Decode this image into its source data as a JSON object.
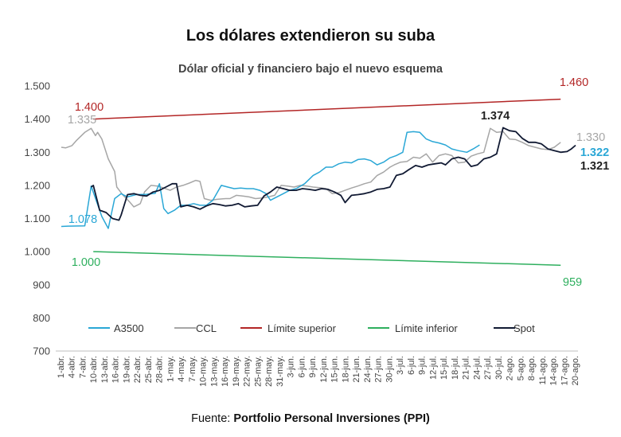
{
  "chart_data": {
    "type": "line",
    "title": "Los dólares extendieron su suba",
    "subtitle": "Dólar oficial y financiero bajo el nuevo esquema",
    "source_prefix": "Fuente: ",
    "source_name": "Portfolio Personal Inversiones (PPI)",
    "ylim": [
      700,
      1500
    ],
    "yticks": [
      "700",
      "800",
      "900",
      "1.000",
      "1.100",
      "1.200",
      "1.300",
      "1.400",
      "1.500"
    ],
    "ytick_values": [
      700,
      800,
      900,
      1000,
      1100,
      1200,
      1300,
      1400,
      1500
    ],
    "xlabels": [
      "1-abr.",
      "4-abr.",
      "7-abr.",
      "10-abr.",
      "13-abr.",
      "16-abr.",
      "19-abr.",
      "22-abr.",
      "25-abr.",
      "28-abr.",
      "1-may.",
      "4-may.",
      "7-may.",
      "10-may.",
      "13-may.",
      "16-may.",
      "19-may.",
      "22-may.",
      "25-may.",
      "28-may.",
      "31-may.",
      "3-jun.",
      "6-jun.",
      "9-jun.",
      "12-jun.",
      "15-jun.",
      "18-jun.",
      "21-jun.",
      "24-jun.",
      "27-jun.",
      "30-jun.",
      "3-jul.",
      "6-jul.",
      "9-jul.",
      "12-jul.",
      "15-jul.",
      "18-jul.",
      "21-jul.",
      "24-jul.",
      "27-jul.",
      "30-jul.",
      "2-ago.",
      "5-ago.",
      "8-ago.",
      "11-ago.",
      "14-ago.",
      "17-ago.",
      "20-ago."
    ],
    "series": [
      {
        "name": "A3500",
        "color": "#2aa7d6",
        "points": [
          [
            0,
            1076
          ],
          [
            3,
            1077
          ],
          [
            11,
            1078
          ],
          [
            14,
            1198
          ],
          [
            19,
            1106
          ],
          [
            22,
            1070
          ],
          [
            25,
            1160
          ],
          [
            28,
            1175
          ],
          [
            31,
            1165
          ],
          [
            35,
            1172
          ],
          [
            40,
            1173
          ],
          [
            44,
            1176
          ],
          [
            46,
            1205
          ],
          [
            48,
            1130
          ],
          [
            50,
            1115
          ],
          [
            53,
            1125
          ],
          [
            56,
            1140
          ],
          [
            59,
            1140
          ],
          [
            62,
            1145
          ],
          [
            65,
            1140
          ],
          [
            68,
            1140
          ],
          [
            71,
            1155
          ],
          [
            75,
            1200
          ],
          [
            78,
            1195
          ],
          [
            81,
            1190
          ],
          [
            84,
            1192
          ],
          [
            87,
            1190
          ],
          [
            90,
            1190
          ],
          [
            93,
            1185
          ],
          [
            96,
            1175
          ],
          [
            98,
            1155
          ],
          [
            101,
            1165
          ],
          [
            104,
            1175
          ],
          [
            107,
            1185
          ],
          [
            110,
            1190
          ],
          [
            114,
            1205
          ],
          [
            118,
            1230
          ],
          [
            121,
            1240
          ],
          [
            124,
            1255
          ],
          [
            127,
            1255
          ],
          [
            130,
            1265
          ],
          [
            133,
            1270
          ],
          [
            136,
            1268
          ],
          [
            139,
            1278
          ],
          [
            142,
            1280
          ],
          [
            145,
            1275
          ],
          [
            148,
            1262
          ],
          [
            151,
            1270
          ],
          [
            154,
            1283
          ],
          [
            157,
            1290
          ],
          [
            160,
            1300
          ],
          [
            162,
            1360
          ],
          [
            165,
            1362
          ],
          [
            168,
            1360
          ],
          [
            171,
            1340
          ],
          [
            174,
            1332
          ],
          [
            177,
            1328
          ],
          [
            180,
            1322
          ],
          [
            183,
            1310
          ],
          [
            186,
            1305
          ],
          [
            190,
            1300
          ],
          [
            193,
            1310
          ],
          [
            196,
            1322
          ]
        ]
      },
      {
        "name": "CCL",
        "color": "#a6a6a6",
        "points": [
          [
            0,
            1315
          ],
          [
            2,
            1313
          ],
          [
            5,
            1320
          ],
          [
            7,
            1335
          ],
          [
            11,
            1360
          ],
          [
            14,
            1372
          ],
          [
            16,
            1350
          ],
          [
            17,
            1360
          ],
          [
            19,
            1340
          ],
          [
            22,
            1280
          ],
          [
            25,
            1242
          ],
          [
            26,
            1195
          ],
          [
            29,
            1170
          ],
          [
            32,
            1150
          ],
          [
            34,
            1135
          ],
          [
            37,
            1145
          ],
          [
            39,
            1180
          ],
          [
            42,
            1200
          ],
          [
            45,
            1198
          ],
          [
            48,
            1192
          ],
          [
            51,
            1185
          ],
          [
            54,
            1195
          ],
          [
            57,
            1200
          ],
          [
            60,
            1207
          ],
          [
            63,
            1215
          ],
          [
            65,
            1212
          ],
          [
            67,
            1160
          ],
          [
            70,
            1155
          ],
          [
            73,
            1158
          ],
          [
            77,
            1160
          ],
          [
            79,
            1160
          ],
          [
            82,
            1170
          ],
          [
            85,
            1168
          ],
          [
            88,
            1165
          ],
          [
            91,
            1160
          ],
          [
            94,
            1162
          ],
          [
            97,
            1165
          ],
          [
            100,
            1170
          ],
          [
            103,
            1200
          ],
          [
            106,
            1198
          ],
          [
            109,
            1195
          ],
          [
            112,
            1200
          ],
          [
            115,
            1198
          ],
          [
            118,
            1195
          ],
          [
            121,
            1193
          ],
          [
            124,
            1190
          ],
          [
            127,
            1175
          ],
          [
            130,
            1178
          ],
          [
            133,
            1185
          ],
          [
            136,
            1192
          ],
          [
            139,
            1198
          ],
          [
            142,
            1205
          ],
          [
            145,
            1210
          ],
          [
            148,
            1230
          ],
          [
            151,
            1240
          ],
          [
            154,
            1255
          ],
          [
            156,
            1262
          ],
          [
            159,
            1270
          ],
          [
            162,
            1272
          ],
          [
            165,
            1285
          ],
          [
            168,
            1282
          ],
          [
            171,
            1295
          ],
          [
            174,
            1270
          ],
          [
            177,
            1290
          ],
          [
            180,
            1295
          ],
          [
            183,
            1290
          ],
          [
            186,
            1268
          ],
          [
            189,
            1270
          ],
          [
            192,
            1288
          ],
          [
            195,
            1295
          ],
          [
            198,
            1300
          ],
          [
            201,
            1372
          ],
          [
            204,
            1360
          ],
          [
            207,
            1362
          ],
          [
            210,
            1340
          ],
          [
            213,
            1338
          ],
          [
            216,
            1330
          ],
          [
            219,
            1320
          ],
          [
            222,
            1315
          ],
          [
            225,
            1310
          ],
          [
            228,
            1308
          ],
          [
            231,
            1315
          ],
          [
            234,
            1330
          ]
        ]
      },
      {
        "name": "Límite superior",
        "color": "#b32626",
        "points": [
          [
            15,
            1400
          ],
          [
            234,
            1460
          ]
        ]
      },
      {
        "name": "Límite inferior",
        "color": "#2eaf5e",
        "points": [
          [
            15,
            1000
          ],
          [
            234,
            959
          ]
        ]
      },
      {
        "name": "Spot",
        "color": "#111a33",
        "points": [
          [
            14,
            1195
          ],
          [
            15,
            1200
          ],
          [
            18,
            1125
          ],
          [
            21,
            1118
          ],
          [
            24,
            1100
          ],
          [
            27,
            1095
          ],
          [
            28,
            1110
          ],
          [
            31,
            1172
          ],
          [
            34,
            1175
          ],
          [
            37,
            1170
          ],
          [
            40,
            1168
          ],
          [
            43,
            1180
          ],
          [
            46,
            1185
          ],
          [
            49,
            1195
          ],
          [
            52,
            1205
          ],
          [
            54,
            1205
          ],
          [
            56,
            1135
          ],
          [
            59,
            1140
          ],
          [
            62,
            1135
          ],
          [
            65,
            1128
          ],
          [
            68,
            1138
          ],
          [
            71,
            1145
          ],
          [
            74,
            1142
          ],
          [
            77,
            1138
          ],
          [
            80,
            1140
          ],
          [
            83,
            1145
          ],
          [
            86,
            1135
          ],
          [
            89,
            1138
          ],
          [
            92,
            1140
          ],
          [
            95,
            1168
          ],
          [
            98,
            1180
          ],
          [
            101,
            1195
          ],
          [
            104,
            1190
          ],
          [
            107,
            1185
          ],
          [
            110,
            1185
          ],
          [
            113,
            1190
          ],
          [
            116,
            1188
          ],
          [
            119,
            1185
          ],
          [
            122,
            1190
          ],
          [
            125,
            1188
          ],
          [
            128,
            1180
          ],
          [
            131,
            1170
          ],
          [
            133,
            1148
          ],
          [
            136,
            1170
          ],
          [
            139,
            1172
          ],
          [
            142,
            1175
          ],
          [
            145,
            1180
          ],
          [
            148,
            1188
          ],
          [
            151,
            1190
          ],
          [
            154,
            1195
          ],
          [
            157,
            1230
          ],
          [
            160,
            1235
          ],
          [
            163,
            1248
          ],
          [
            166,
            1260
          ],
          [
            169,
            1255
          ],
          [
            172,
            1262
          ],
          [
            175,
            1265
          ],
          [
            178,
            1268
          ],
          [
            180,
            1262
          ],
          [
            183,
            1280
          ],
          [
            186,
            1285
          ],
          [
            189,
            1280
          ],
          [
            192,
            1257
          ],
          [
            195,
            1262
          ],
          [
            198,
            1280
          ],
          [
            201,
            1285
          ],
          [
            204,
            1295
          ],
          [
            207,
            1374
          ],
          [
            210,
            1365
          ],
          [
            213,
            1362
          ],
          [
            216,
            1342
          ],
          [
            219,
            1330
          ],
          [
            222,
            1330
          ],
          [
            225,
            1325
          ],
          [
            228,
            1310
          ],
          [
            231,
            1305
          ],
          [
            234,
            1300
          ],
          [
            237,
            1302
          ],
          [
            239,
            1310
          ],
          [
            241,
            1321
          ]
        ]
      }
    ],
    "annotations": [
      {
        "text": "1.400",
        "series": "Límite superior",
        "color": "#b32626",
        "bold": false
      },
      {
        "text": "1.335",
        "series": "CCL",
        "color": "#a6a6a6",
        "bold": false
      },
      {
        "text": "1.078",
        "series": "A3500",
        "color": "#2aa7d6",
        "bold": false
      },
      {
        "text": "1.000",
        "series": "Límite inferior",
        "color": "#2eaf5e",
        "bold": false
      },
      {
        "text": "1.460",
        "series": "Límite superior",
        "color": "#b32626",
        "bold": false
      },
      {
        "text": "1.374",
        "series": "Spot",
        "color": "#222222",
        "bold": true
      },
      {
        "text": "1.330",
        "series": "CCL",
        "color": "#a6a6a6",
        "bold": false
      },
      {
        "text": "1.322",
        "series": "A3500",
        "color": "#2aa7d6",
        "bold": true
      },
      {
        "text": "1.321",
        "series": "Spot",
        "color": "#222222",
        "bold": true
      },
      {
        "text": "959",
        "series": "Límite inferior",
        "color": "#2eaf5e",
        "bold": false
      }
    ],
    "legend": [
      "A3500",
      "CCL",
      "Límite superior",
      "Límite inferior",
      "Spot"
    ]
  }
}
